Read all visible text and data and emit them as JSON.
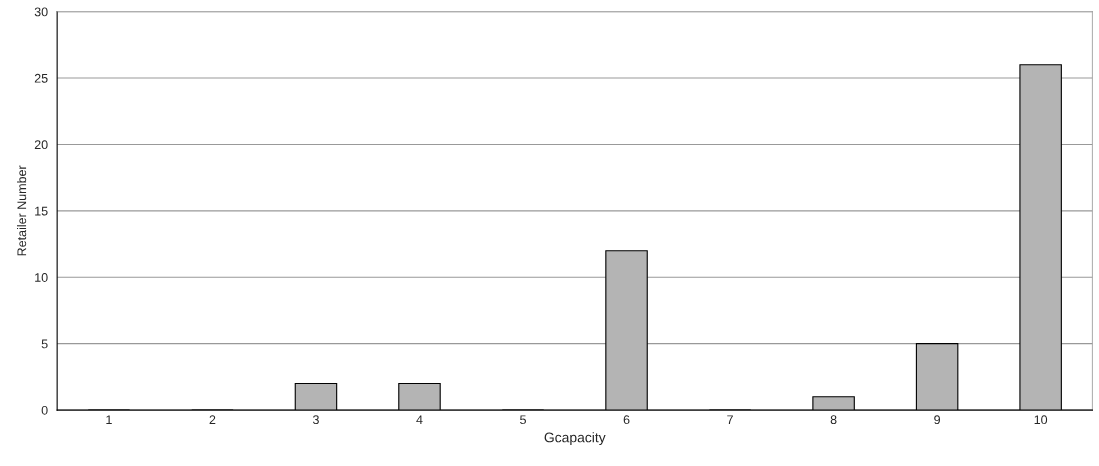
{
  "chart_data": {
    "type": "bar",
    "xlabel": "Gcapacity",
    "ylabel": "Retailer Number",
    "categories": [
      "1",
      "2",
      "3",
      "4",
      "5",
      "6",
      "7",
      "8",
      "9",
      "10"
    ],
    "values": [
      0,
      0,
      2,
      2,
      0,
      12,
      0,
      1,
      5,
      26
    ],
    "color": "#b4b4b4",
    "ylim": [
      0,
      30
    ],
    "yticks": [
      0,
      5,
      10,
      15,
      20,
      25,
      30
    ],
    "grid": "y"
  }
}
